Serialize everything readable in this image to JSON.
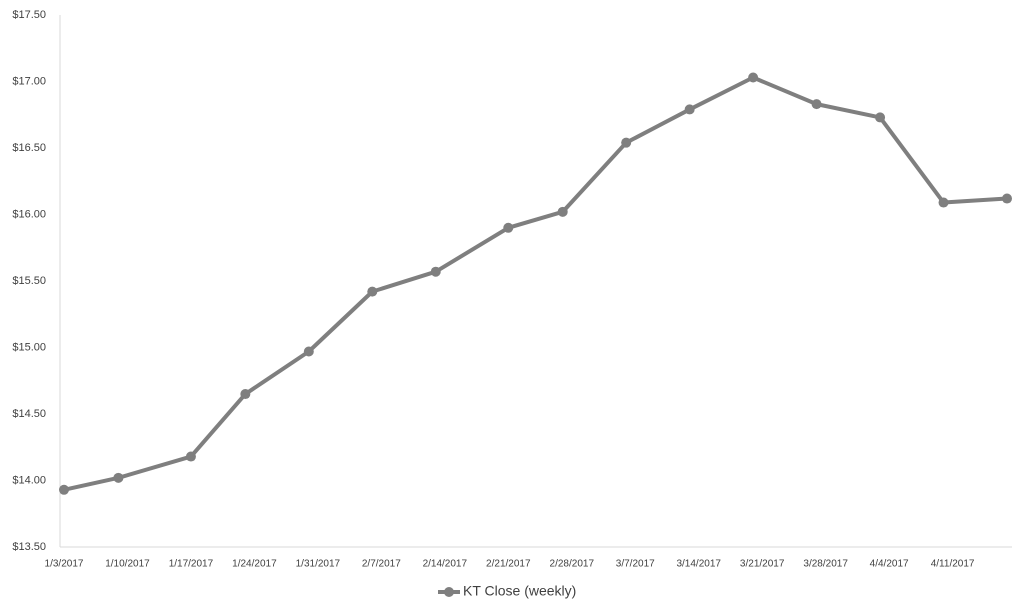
{
  "chart_data": {
    "type": "line",
    "x": [
      "1/3/2017",
      "1/9/2017",
      "1/17/2017",
      "1/23/2017",
      "1/30/2017",
      "2/6/2017",
      "2/13/2017",
      "2/21/2017",
      "2/27/2017",
      "3/6/2017",
      "3/13/2017",
      "3/20/2017",
      "3/27/2017",
      "4/3/2017",
      "4/10/2017",
      "4/17/2017"
    ],
    "series": [
      {
        "name": "KT Close (weekly)",
        "color": "#7f7f7f",
        "values": [
          13.93,
          14.02,
          14.18,
          14.65,
          14.97,
          15.42,
          15.57,
          15.9,
          16.02,
          16.54,
          16.79,
          17.03,
          16.83,
          16.73,
          16.09,
          16.12
        ]
      }
    ],
    "xlim": [
      "1/3/2017",
      "4/17/2017"
    ],
    "xticks": [
      "1/3/2017",
      "1/10/2017",
      "1/17/2017",
      "1/24/2017",
      "1/31/2017",
      "2/7/2017",
      "2/14/2017",
      "2/21/2017",
      "2/28/2017",
      "3/7/2017",
      "3/14/2017",
      "3/21/2017",
      "3/28/2017",
      "4/4/2017",
      "4/11/2017"
    ],
    "ylim": [
      13.5,
      17.5
    ],
    "yticks": [
      {
        "value": 13.5,
        "label": "$13.50"
      },
      {
        "value": 14,
        "label": "$14.00"
      },
      {
        "value": 14.5,
        "label": "$14.50"
      },
      {
        "value": 15,
        "label": "$15.00"
      },
      {
        "value": 15.5,
        "label": "$15.50"
      },
      {
        "value": 16,
        "label": "$16.00"
      },
      {
        "value": 16.5,
        "label": "$16.50"
      },
      {
        "value": 17,
        "label": "$17.00"
      },
      {
        "value": 17.5,
        "label": "$17.50"
      }
    ],
    "legend": "bottom"
  }
}
